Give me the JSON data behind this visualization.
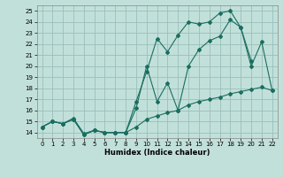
{
  "xlabel": "Humidex (Indice chaleur)",
  "bg_color": "#c2e0da",
  "grid_color": "#9abfba",
  "line_color": "#1a6e60",
  "xlim": [
    -0.5,
    22.5
  ],
  "ylim": [
    13.5,
    25.5
  ],
  "xticks": [
    0,
    1,
    2,
    3,
    4,
    5,
    6,
    7,
    8,
    9,
    10,
    11,
    12,
    13,
    14,
    15,
    16,
    17,
    18,
    19,
    20,
    21,
    22
  ],
  "yticks": [
    14,
    15,
    16,
    17,
    18,
    19,
    20,
    21,
    22,
    23,
    24,
    25
  ],
  "line_jagged_x": [
    0,
    1,
    2,
    3,
    4,
    5,
    6,
    7,
    8,
    9,
    10,
    11,
    12,
    13,
    14,
    15,
    16,
    17,
    18,
    19,
    20,
    21,
    22
  ],
  "line_jagged_y": [
    14.5,
    15.0,
    14.8,
    15.2,
    13.8,
    14.2,
    14.0,
    14.0,
    14.0,
    16.2,
    20.0,
    16.8,
    18.5,
    16.0,
    20.0,
    21.5,
    22.3,
    22.7,
    24.2,
    23.5,
    20.0,
    22.2,
    17.8
  ],
  "line_top_x": [
    0,
    1,
    2,
    3,
    4,
    5,
    6,
    7,
    8,
    9,
    10,
    11,
    12,
    13,
    14,
    15,
    16,
    17,
    18,
    19,
    20
  ],
  "line_top_y": [
    14.5,
    15.0,
    14.8,
    15.2,
    13.8,
    14.2,
    14.0,
    14.0,
    14.0,
    16.8,
    19.5,
    22.5,
    21.3,
    22.8,
    24.0,
    23.8,
    24.0,
    24.8,
    25.0,
    23.5,
    20.5
  ],
  "line_smooth_x": [
    0,
    1,
    2,
    3,
    4,
    5,
    6,
    7,
    8,
    9,
    10,
    11,
    12,
    13,
    14,
    15,
    16,
    17,
    18,
    19,
    20,
    21,
    22
  ],
  "line_smooth_y": [
    14.5,
    15.0,
    14.8,
    15.3,
    13.9,
    14.2,
    14.0,
    14.0,
    14.0,
    14.5,
    15.2,
    15.5,
    15.8,
    16.0,
    16.5,
    16.8,
    17.0,
    17.2,
    17.5,
    17.7,
    17.9,
    18.1,
    17.8
  ]
}
